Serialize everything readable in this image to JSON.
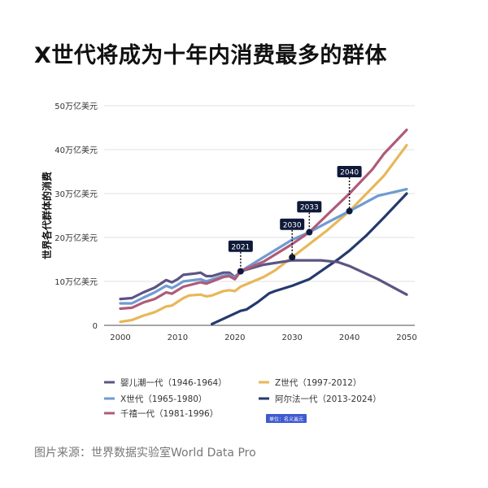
{
  "title": "X世代将成为十年内消费最多的群体",
  "source": "图片来源：世界数据实验室World Data Pro",
  "chart_data": {
    "type": "line",
    "title": "X世代将成为十年内消费最多的群体",
    "ylabel": "世界各代群体的消费",
    "xlabel": "",
    "xlim": [
      2000,
      2050
    ],
    "ylim": [
      0,
      50
    ],
    "x_ticks": [
      "2000",
      "2010",
      "2020",
      "2030",
      "2040",
      "2050"
    ],
    "y_ticks": [
      {
        "value": 0,
        "label": "0"
      },
      {
        "value": 10,
        "label": "10万亿美元"
      },
      {
        "value": 20,
        "label": "20万亿美元"
      },
      {
        "value": 30,
        "label": "30万亿美元"
      },
      {
        "value": 40,
        "label": "40万亿美元"
      },
      {
        "value": 50,
        "label": "50万亿美元"
      }
    ],
    "grid": "horizontal",
    "unit_badge": "单位：名义美元",
    "legend_placement": "bottom",
    "series": [
      {
        "name": "婴儿潮一代（1946-1964）",
        "color": "#5d5483",
        "points": [
          [
            2000,
            6
          ],
          [
            2002,
            6.2
          ],
          [
            2004,
            7.5
          ],
          [
            2006,
            8.6
          ],
          [
            2008,
            10.3
          ],
          [
            2009,
            9.8
          ],
          [
            2010,
            10.5
          ],
          [
            2011,
            11.5
          ],
          [
            2013,
            11.8
          ],
          [
            2014,
            12
          ],
          [
            2015,
            11.2
          ],
          [
            2016,
            11.2
          ],
          [
            2018,
            12
          ],
          [
            2019,
            12
          ],
          [
            2020,
            11
          ],
          [
            2021,
            12.3
          ],
          [
            2025,
            13.8
          ],
          [
            2030,
            14.8
          ],
          [
            2035,
            14.8
          ],
          [
            2038,
            14.4
          ],
          [
            2040,
            13.5
          ],
          [
            2045,
            10.5
          ],
          [
            2050,
            7
          ]
        ]
      },
      {
        "name": "X世代（1965-1980）",
        "color": "#6f9bd1",
        "points": [
          [
            2000,
            5
          ],
          [
            2002,
            5
          ],
          [
            2004,
            6.3
          ],
          [
            2006,
            7.5
          ],
          [
            2008,
            9
          ],
          [
            2009,
            8.5
          ],
          [
            2010,
            9.2
          ],
          [
            2011,
            10
          ],
          [
            2014,
            10.5
          ],
          [
            2015,
            10
          ],
          [
            2018,
            11.3
          ],
          [
            2019,
            11.5
          ],
          [
            2020,
            10.8
          ],
          [
            2021,
            12.3
          ],
          [
            2025,
            15.5
          ],
          [
            2030,
            19.5
          ],
          [
            2033,
            21.2
          ],
          [
            2036,
            23.3
          ],
          [
            2040,
            26
          ],
          [
            2045,
            29.5
          ],
          [
            2050,
            31
          ]
        ]
      },
      {
        "name": "千禧一代（1981-1996）",
        "color": "#b05a78",
        "points": [
          [
            2000,
            3.8
          ],
          [
            2002,
            4
          ],
          [
            2004,
            5.2
          ],
          [
            2006,
            6
          ],
          [
            2008,
            7.5
          ],
          [
            2009,
            7.2
          ],
          [
            2010,
            8
          ],
          [
            2011,
            8.8
          ],
          [
            2014,
            9.8
          ],
          [
            2015,
            9.5
          ],
          [
            2018,
            11
          ],
          [
            2019,
            11.2
          ],
          [
            2020,
            10.5
          ],
          [
            2021,
            12.3
          ],
          [
            2025,
            14.5
          ],
          [
            2030,
            18.5
          ],
          [
            2033,
            21.2
          ],
          [
            2036,
            25
          ],
          [
            2040,
            30
          ],
          [
            2044,
            35.5
          ],
          [
            2046,
            39
          ],
          [
            2050,
            44.5
          ]
        ]
      },
      {
        "name": "Z世代（1997-2012）",
        "color": "#e8b75a",
        "points": [
          [
            2000,
            0.8
          ],
          [
            2002,
            1.2
          ],
          [
            2004,
            2.2
          ],
          [
            2006,
            3
          ],
          [
            2008,
            4.3
          ],
          [
            2009,
            4.5
          ],
          [
            2011,
            6.2
          ],
          [
            2012,
            6.8
          ],
          [
            2014,
            7
          ],
          [
            2015,
            6.6
          ],
          [
            2016,
            6.8
          ],
          [
            2018,
            7.8
          ],
          [
            2019,
            8
          ],
          [
            2020,
            7.8
          ],
          [
            2021,
            8.8
          ],
          [
            2025,
            11
          ],
          [
            2027,
            12.5
          ],
          [
            2030,
            15.5
          ],
          [
            2033,
            18.5
          ],
          [
            2036,
            21.5
          ],
          [
            2040,
            26
          ],
          [
            2043,
            30
          ],
          [
            2046,
            34
          ],
          [
            2050,
            41
          ]
        ]
      },
      {
        "name": "阿尔法一代（2013-2024）",
        "color": "#243a6e",
        "points": [
          [
            2016,
            0.3
          ],
          [
            2018,
            1.5
          ],
          [
            2020,
            2.7
          ],
          [
            2021,
            3.3
          ],
          [
            2022,
            3.6
          ],
          [
            2024,
            5.3
          ],
          [
            2026,
            7.3
          ],
          [
            2027,
            7.8
          ],
          [
            2030,
            9
          ],
          [
            2033,
            10.5
          ],
          [
            2036,
            13.2
          ],
          [
            2038,
            15
          ],
          [
            2040,
            17
          ],
          [
            2043,
            20.5
          ],
          [
            2046,
            24.5
          ],
          [
            2050,
            30
          ]
        ]
      }
    ],
    "annotations": [
      {
        "label": "2021",
        "x": 2021,
        "y": 12.3,
        "label_y": 18
      },
      {
        "label": "2030",
        "x": 2030,
        "y": 15.5,
        "label_y": 23
      },
      {
        "label": "2033",
        "x": 2033,
        "y": 21.2,
        "label_y": 27
      },
      {
        "label": "2040",
        "x": 2040,
        "y": 26,
        "label_y": 35
      }
    ]
  }
}
